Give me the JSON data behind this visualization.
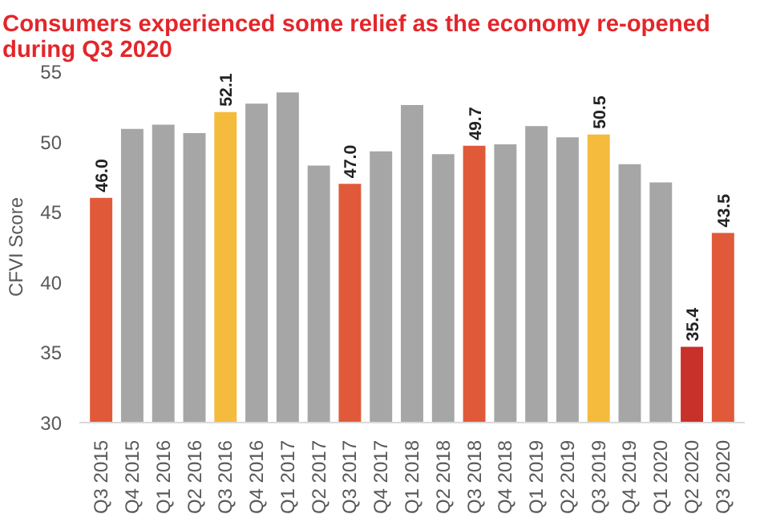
{
  "chart_data": {
    "type": "bar",
    "title": "Consumers experienced some relief as the economy re-opened during Q3 2020",
    "ylabel": "CFVI Score",
    "categories": [
      "Q3 2015",
      "Q4 2015",
      "Q1 2016",
      "Q2 2016",
      "Q3 2016",
      "Q4 2016",
      "Q1 2017",
      "Q2 2017",
      "Q3 2017",
      "Q4 2017",
      "Q1 2018",
      "Q2 2018",
      "Q3 2018",
      "Q4 2018",
      "Q1 2019",
      "Q2 2019",
      "Q3 2019",
      "Q4 2019",
      "Q1 2020",
      "Q2 2020",
      "Q3 2020"
    ],
    "values": [
      46.0,
      50.9,
      51.2,
      50.6,
      52.1,
      52.7,
      53.5,
      48.3,
      47.0,
      49.3,
      52.6,
      49.1,
      49.7,
      49.8,
      51.1,
      50.3,
      50.5,
      48.4,
      47.1,
      35.4,
      43.5
    ],
    "colors": [
      "#e05a3a",
      "#a6a6a6",
      "#a6a6a6",
      "#a6a6a6",
      "#f5bb3c",
      "#a6a6a6",
      "#a6a6a6",
      "#a6a6a6",
      "#e05a3a",
      "#a6a6a6",
      "#a6a6a6",
      "#a6a6a6",
      "#e05a3a",
      "#a6a6a6",
      "#a6a6a6",
      "#a6a6a6",
      "#f5bb3c",
      "#a6a6a6",
      "#a6a6a6",
      "#c8302a",
      "#e05a3a"
    ],
    "value_labels": [
      "46.0",
      null,
      null,
      null,
      "52.1",
      null,
      null,
      null,
      "47.0",
      null,
      null,
      null,
      "49.7",
      null,
      null,
      null,
      "50.5",
      null,
      null,
      "35.4",
      "43.5"
    ],
    "ylim": [
      30,
      55
    ],
    "yticks": [
      30,
      35,
      40,
      45,
      50,
      55
    ],
    "grid": false
  }
}
